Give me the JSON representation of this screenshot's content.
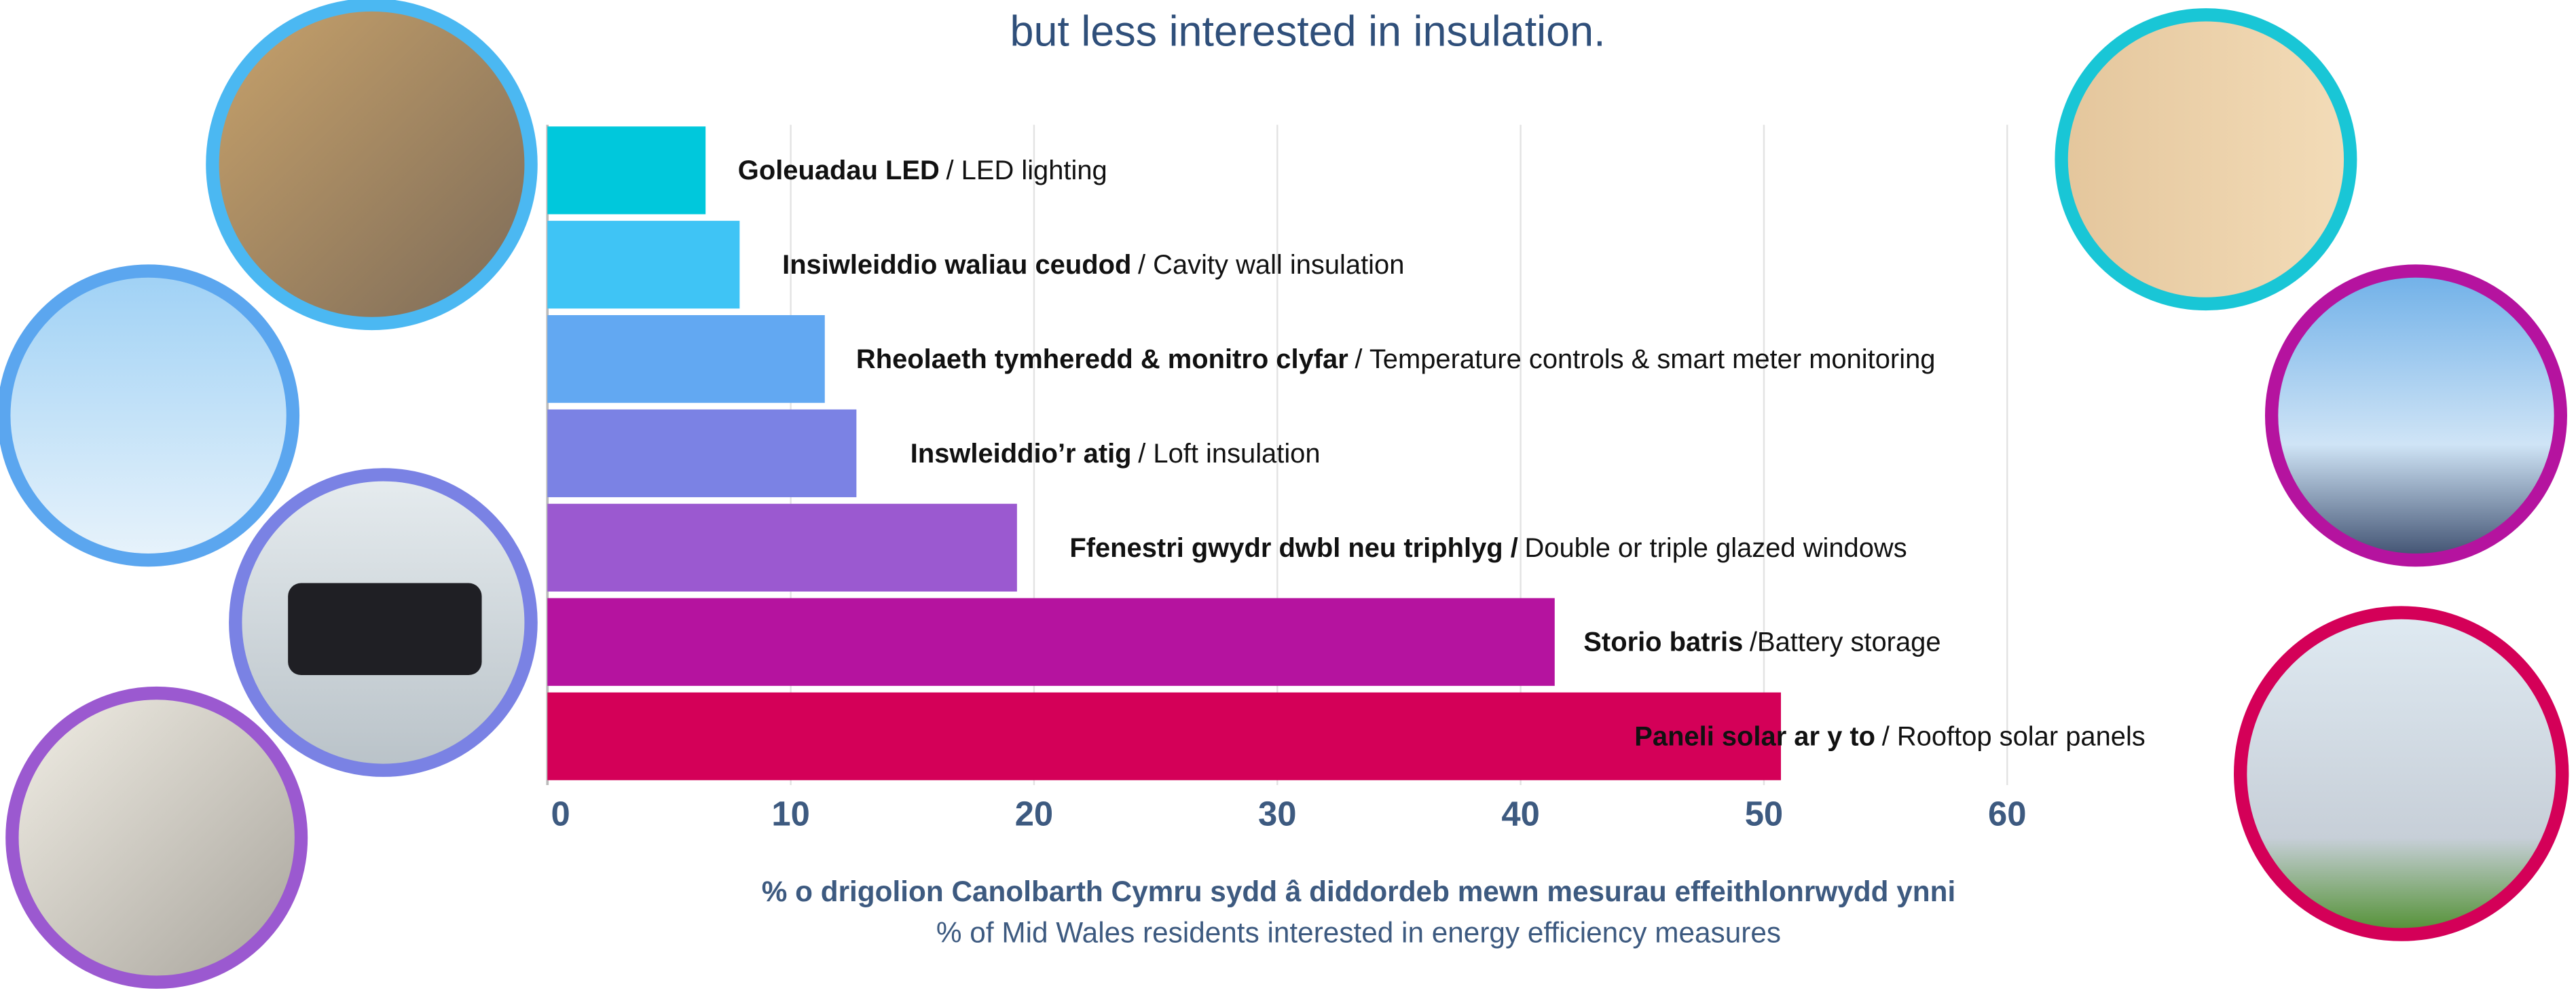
{
  "chart_data": {
    "type": "barh",
    "title": "but less interested in insulation.",
    "categories_welsh": [
      "Goleuadau LED",
      "Insiwleiddio waliau ceudod",
      "Rheolaeth tymheredd & monitro clyfar",
      "Inswleiddio’r atig",
      "Ffenestri gwydr dwbl neu triphlyg  /",
      "Storio batris",
      "Paneli solar ar y to"
    ],
    "categories": [
      "/ LED lighting",
      "/ Cavity wall insulation",
      "/ Temperature controls & smart meter monitoring",
      "/ Loft insulation",
      "Double or triple glazed windows",
      "/Battery storage",
      "/ Rooftop solar panels"
    ],
    "values": [
      6.5,
      7.9,
      11.4,
      12.7,
      19.3,
      41.4,
      50.7
    ],
    "colors": [
      "#00c8dc",
      "#3fc4f5",
      "#62a8f2",
      "#7b82e4",
      "#9b59d0",
      "#b5139f",
      "#d40058"
    ],
    "xlim": [
      0,
      60
    ],
    "xticks": [
      0,
      10,
      20,
      30,
      40,
      50,
      60
    ],
    "grid": true,
    "xlabel": "% o drigolion Canolbarth Cymru sydd â diddordeb mewn mesurau effeithlonrwydd ynni",
    "xlabel_english": "% of Mid Wales residents interested in energy efficiency measures"
  }
}
